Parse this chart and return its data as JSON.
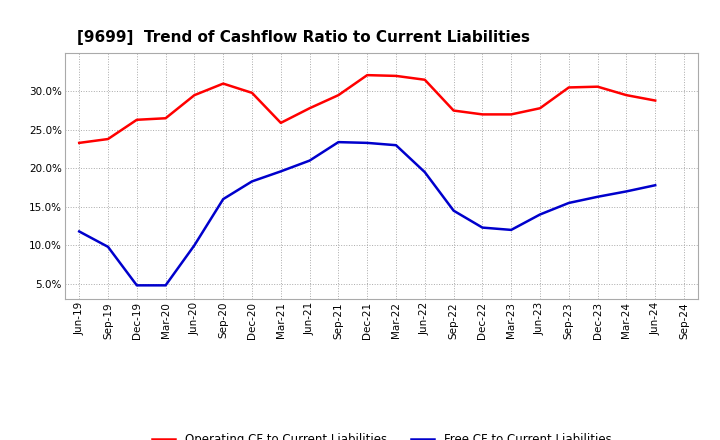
{
  "title": "[9699]  Trend of Cashflow Ratio to Current Liabilities",
  "x_labels": [
    "Jun-19",
    "Sep-19",
    "Dec-19",
    "Mar-20",
    "Jun-20",
    "Sep-20",
    "Dec-20",
    "Mar-21",
    "Jun-21",
    "Sep-21",
    "Dec-21",
    "Mar-22",
    "Jun-22",
    "Sep-22",
    "Dec-22",
    "Mar-23",
    "Jun-23",
    "Sep-23",
    "Dec-23",
    "Mar-24",
    "Jun-24",
    "Sep-24"
  ],
  "operating_cf": [
    0.233,
    0.238,
    0.263,
    0.265,
    0.295,
    0.31,
    0.298,
    0.259,
    0.278,
    0.295,
    0.321,
    0.32,
    0.315,
    0.275,
    0.27,
    0.27,
    0.278,
    0.305,
    0.306,
    0.295,
    0.288,
    null
  ],
  "free_cf": [
    0.118,
    0.098,
    0.048,
    0.048,
    0.1,
    0.16,
    0.183,
    0.196,
    0.21,
    0.234,
    0.233,
    0.23,
    0.195,
    0.145,
    0.123,
    0.12,
    0.14,
    0.155,
    0.163,
    0.17,
    0.178,
    null
  ],
  "ylim": [
    0.03,
    0.35
  ],
  "yticks": [
    0.05,
    0.1,
    0.15,
    0.2,
    0.25,
    0.3
  ],
  "operating_color": "#FF0000",
  "free_color": "#0000CC",
  "bg_color": "#FFFFFF",
  "plot_bg_color": "#FFFFFF",
  "grid_color": "#AAAAAA",
  "legend_operating": "Operating CF to Current Liabilities",
  "legend_free": "Free CF to Current Liabilities",
  "title_fontsize": 11,
  "tick_fontsize": 7.5,
  "legend_fontsize": 8.5,
  "line_width": 1.8
}
